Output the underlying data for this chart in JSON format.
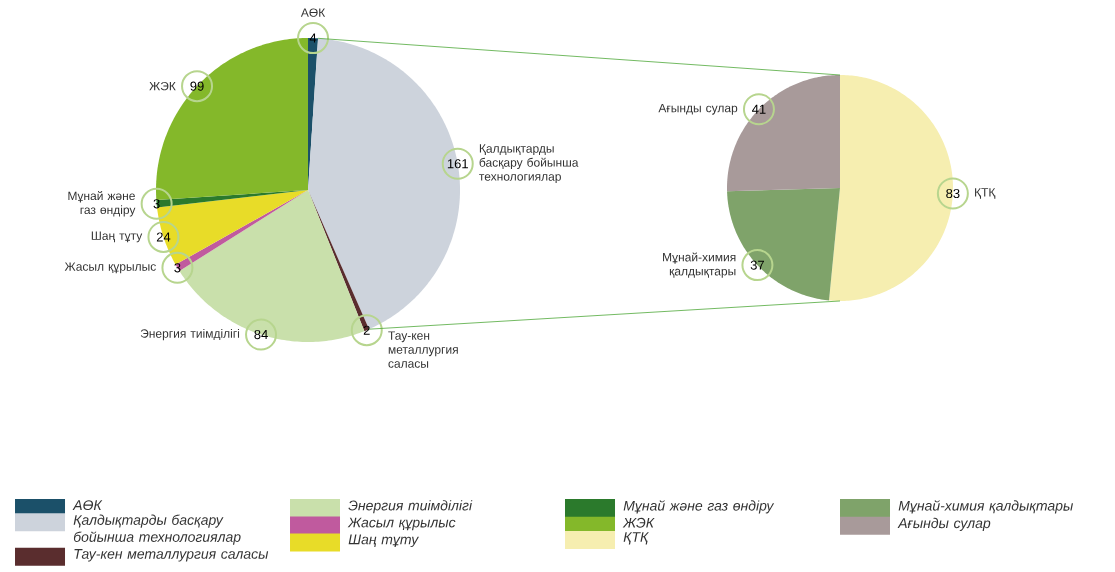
{
  "chart_data": [
    {
      "type": "pie",
      "categories": [
        "АӨК",
        "Қалдықтарды басқару бойынша технологиялар",
        "Тау-кен металлургия саласы",
        "Энергия тиімділігі",
        "Жасыл құрылыс",
        "Шаң тұту",
        "Мұнай және газ өндіру",
        "ЖЭК"
      ],
      "values": [
        4,
        161,
        2,
        84,
        3,
        24,
        3,
        99
      ],
      "colors": [
        "#1b5069",
        "#cdd3dc",
        "#5a2d2e",
        "#c9e0ab",
        "#c05a9e",
        "#e8dc28",
        "#2b7a2c",
        "#84b82a"
      ],
      "data_labels": true,
      "legend": "bottom"
    },
    {
      "type": "pie",
      "categories": [
        "ҚТҚ",
        "Мұнай-химия қалдықтары",
        "Ағынды сулар"
      ],
      "values": [
        83,
        37,
        41
      ],
      "colors": [
        "#f6eeb0",
        "#7fa36a",
        "#a89a9a"
      ],
      "data_labels": true,
      "legend": "bottom"
    }
  ]
}
